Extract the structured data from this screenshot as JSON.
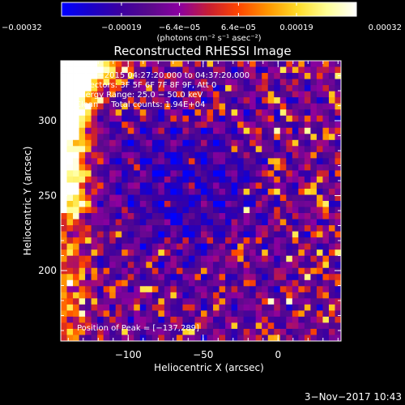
{
  "chart_data": {
    "type": "heatmap",
    "title": "Reconstructed RHESSI Image",
    "xlabel": "Heliocentric X (arcsec)",
    "ylabel": "Heliocentric Y (arcsec)",
    "x_range": [
      -145,
      42
    ],
    "y_range": [
      153,
      340
    ],
    "x_ticks": [
      -100,
      -50,
      0
    ],
    "x_tick_labels": [
      "−100",
      "−50",
      "0"
    ],
    "y_ticks": [
      200,
      250,
      300
    ],
    "y_tick_labels": [
      "200",
      "250",
      "300"
    ],
    "colorbar": {
      "range": [
        -0.00032,
        0.00032
      ],
      "tick_values": [
        -0.00032,
        -0.00019,
        -6.4e-05,
        6.4e-05,
        0.00019,
        0.00032
      ],
      "tick_labels": [
        "−0.00032",
        "−0.00019",
        "−6.4e−05",
        "6.4e−05",
        "0.00019",
        "0.00032"
      ],
      "units_label": "(photons cm⁻² s⁻¹ asec⁻²)",
      "colormap": [
        "#0000ff",
        "#1a00c8",
        "#3c00a0",
        "#5a0a8c",
        "#8c00a0",
        "#c81e32",
        "#ff4600",
        "#ff9600",
        "#ffdc28",
        "#ffff96",
        "#ffffff"
      ]
    },
    "annotations": [
      "7−Jun−2015 04:27:20.000 to 04:37:20.000",
      "Detectors: 3F 5F 6F 7F 8F 9F, Att 0",
      "Energy Range: 25.0 − 50.0 keV",
      "Clean     Total counts: 1.94E+04"
    ],
    "peak_label": "Position of Peak = [−137,289]",
    "peak_position": [
      -137,
      289
    ],
    "grid": false
  },
  "footer": {
    "timestamp": "3−Nov−2017 10:43"
  }
}
